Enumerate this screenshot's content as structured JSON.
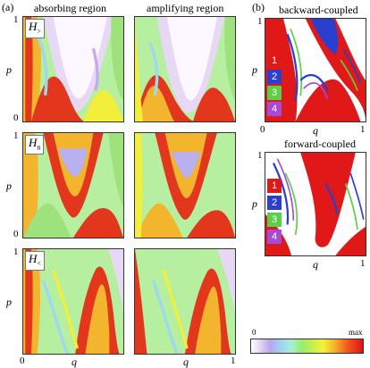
{
  "labels": {
    "a": "(a)",
    "b": "(b)",
    "col1": "absorbing region",
    "col2": "amplifying region",
    "backward": "backward-coupled",
    "forward": "forward-coupled"
  },
  "hamiltonians": [
    {
      "sym": "H",
      "sub": ">"
    },
    {
      "sym": "H",
      "sub": "n"
    },
    {
      "sym": "H",
      "sub": "<"
    }
  ],
  "axes": {
    "p": "p",
    "q": "q",
    "tick0": "0",
    "tick1": "1"
  },
  "legend": [
    "1",
    "2",
    "3",
    "4"
  ],
  "legend_colors": [
    "#e01818",
    "#2a3fd0",
    "#5ad04a",
    "#a64ad8"
  ],
  "colorbar": {
    "min": "0",
    "max": "max"
  }
}
